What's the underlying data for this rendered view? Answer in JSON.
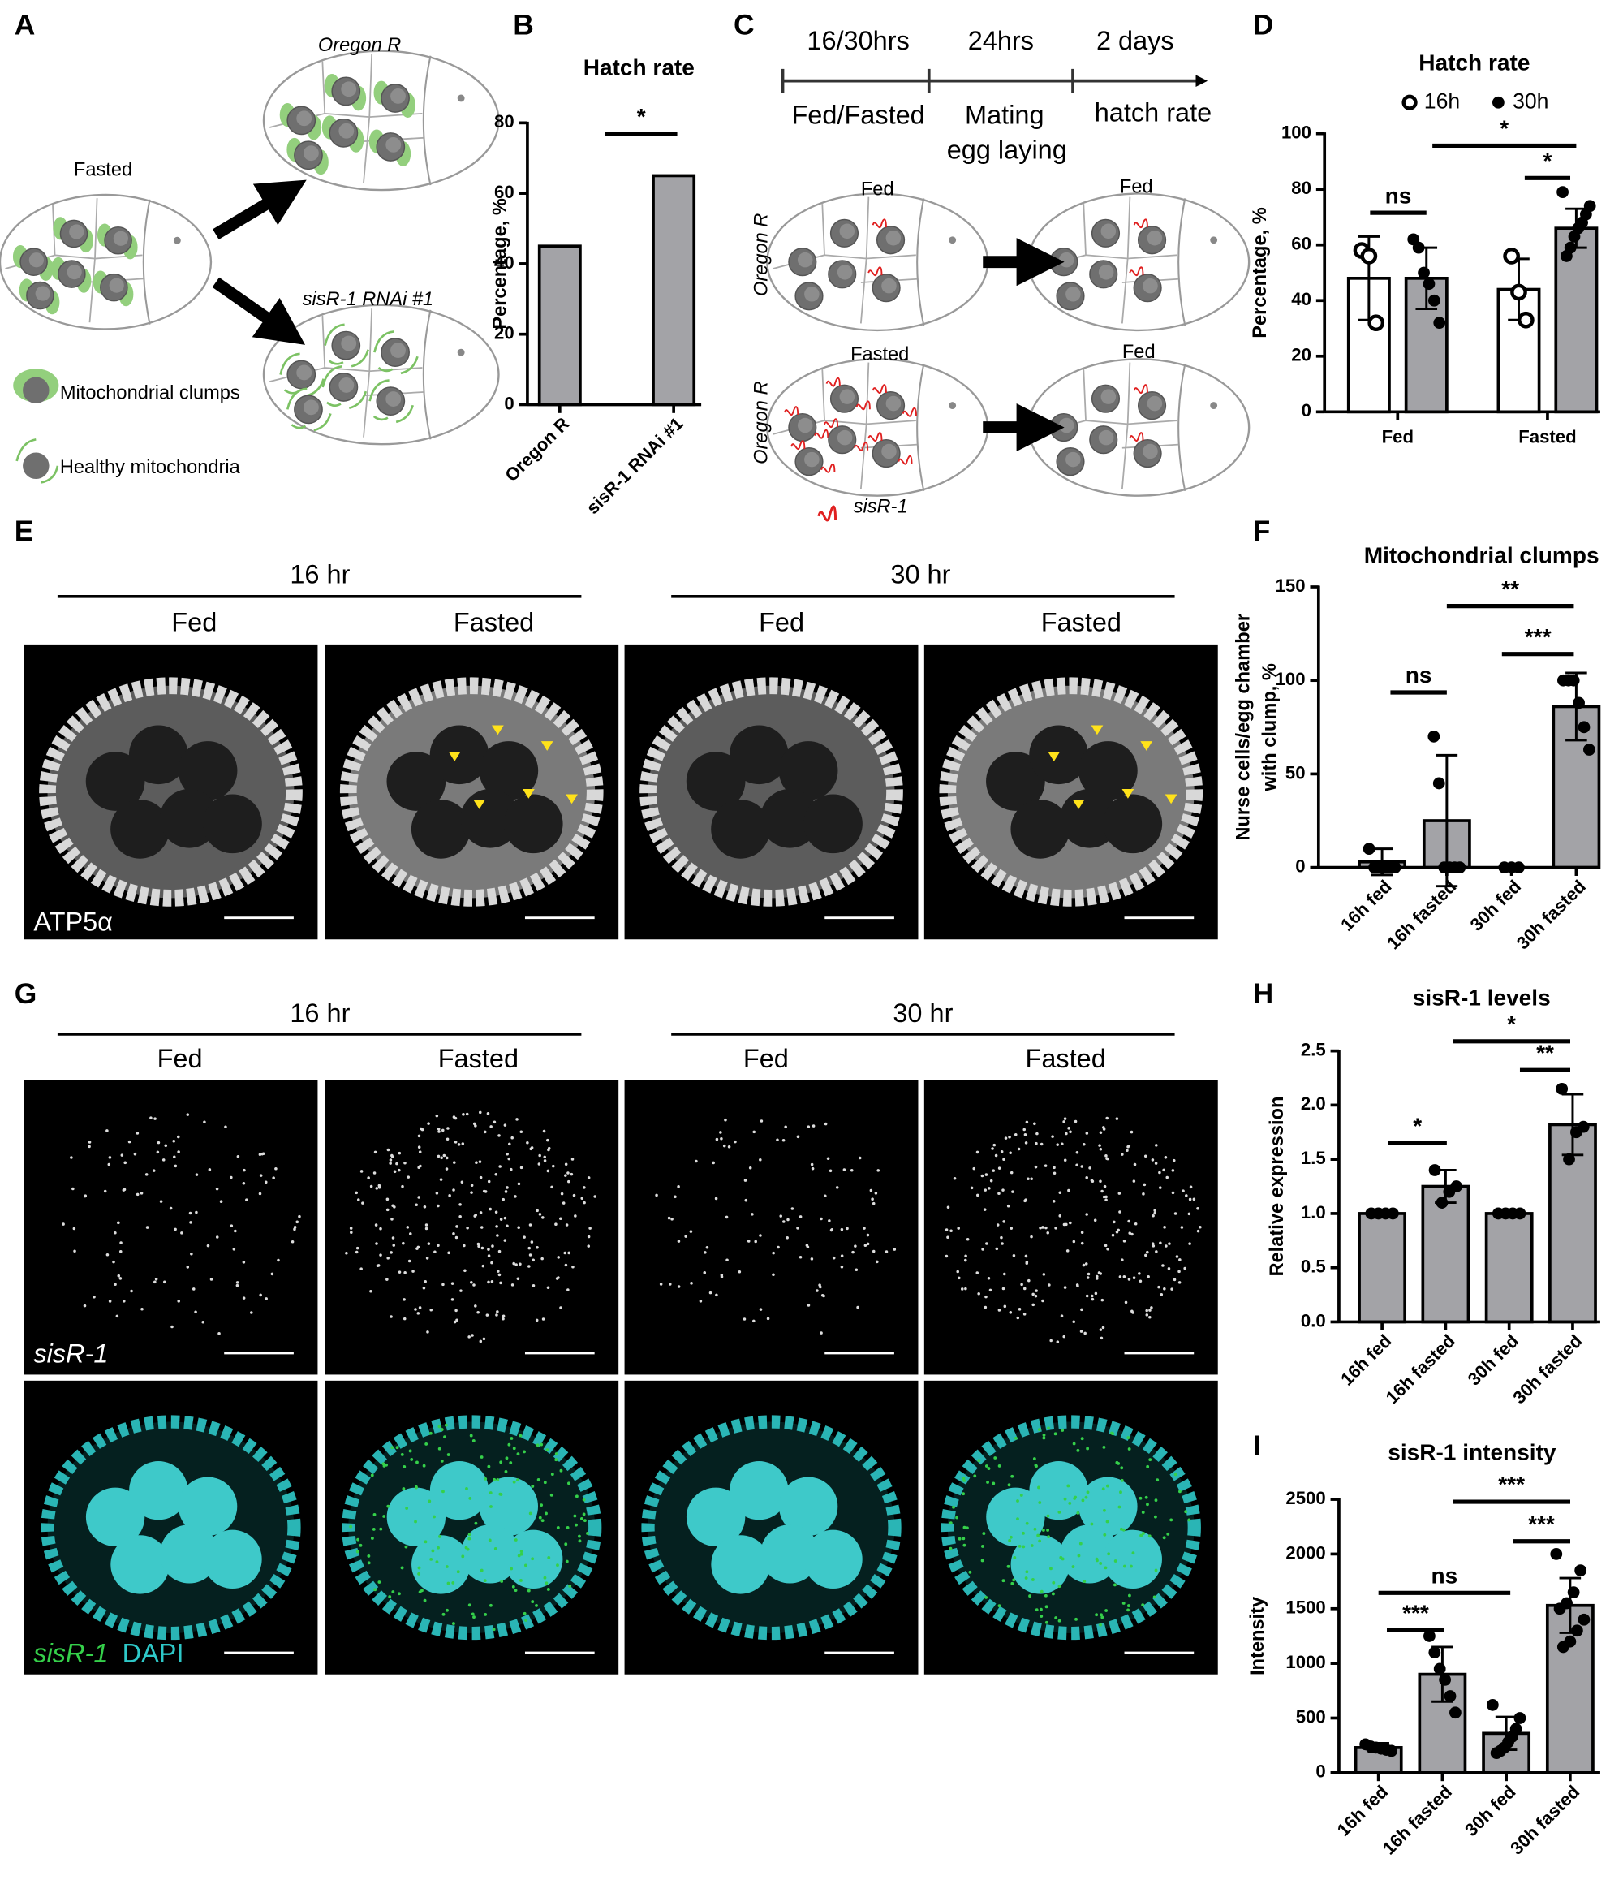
{
  "panel_labels": [
    "A",
    "B",
    "C",
    "D",
    "E",
    "F",
    "G",
    "H",
    "I"
  ],
  "panel_a": {
    "fasted": "Fasted",
    "top": "Oregon R",
    "bottom": "sisR-1 RNAi #1",
    "legend": [
      "Mitochondrial clumps",
      "Healthy mitochondria"
    ]
  },
  "panel_c": {
    "times": [
      "16/30hrs",
      "24hrs",
      "2 days"
    ],
    "steps": [
      "Fed/Fasted",
      "Mating",
      "egg laying",
      "hatch rate"
    ],
    "rows": [
      "Oregon R",
      "Oregon R"
    ],
    "states": [
      "Fed",
      "Fed",
      "Fasted",
      "Fed"
    ],
    "legend": "sisR-1"
  },
  "panel_e": {
    "times": [
      "16 hr",
      "30 hr"
    ],
    "conditions": [
      "Fed",
      "Fasted",
      "Fed",
      "Fasted"
    ],
    "stain": "ATP5α"
  },
  "panel_g": {
    "times": [
      "16 hr",
      "30 hr"
    ],
    "conditions": [
      "Fed",
      "Fasted",
      "Fed",
      "Fasted"
    ],
    "stain": "sisR-1",
    "merge": [
      "sisR-1",
      "DAPI"
    ]
  },
  "chart_data": [
    {
      "type": "bar",
      "title": "Hatch rate",
      "ylabel": "Percentage, %",
      "categories": [
        "Oregon R",
        "sisR-1 RNAi #1"
      ],
      "series": [
        {
          "color": "#a3a3a7",
          "values": [
            45,
            65
          ]
        }
      ],
      "ylim": [
        0,
        80
      ],
      "yticks": [
        0,
        20,
        40,
        60,
        80
      ],
      "annotations": [
        "*"
      ]
    },
    {
      "type": "bar",
      "title": "Hatch rate",
      "ylabel": "Percentage, %",
      "categories": [
        "Fed",
        "Fasted"
      ],
      "legend": "top",
      "series": [
        {
          "name": "16h",
          "color": "#ffffff",
          "marker": "open",
          "values": [
            48,
            44
          ],
          "errors": [
            15,
            11
          ],
          "points": [
            [
              58,
              56,
              32
            ],
            [
              56,
              43,
              33
            ]
          ]
        },
        {
          "name": "30h",
          "color": "#a3a3a7",
          "marker": "filled",
          "values": [
            48,
            66
          ],
          "errors": [
            11,
            7
          ],
          "points": [
            [
              62,
              59,
              50,
              46,
              40,
              32
            ],
            [
              79,
              74,
              71,
              68,
              66,
              63,
              59,
              56
            ]
          ]
        }
      ],
      "ylim": [
        0,
        100
      ],
      "yticks": [
        0,
        20,
        40,
        60,
        80,
        100
      ],
      "annotations": [
        "ns",
        "*",
        "*"
      ]
    },
    {
      "type": "bar",
      "title": "Mitochondrial clumps",
      "ylabel": [
        "Nurse cells/egg chamber",
        "with clump, %"
      ],
      "categories": [
        "16h fed",
        "16h fasted",
        "30h fed",
        "30h fasted"
      ],
      "series": [
        {
          "color": "#a3a3a7",
          "marker": "filled",
          "values": [
            3,
            25,
            0,
            86
          ],
          "errors": [
            7,
            35,
            0,
            18
          ],
          "points": [
            [
              10,
              0,
              0,
              0,
              0,
              0
            ],
            [
              70,
              45,
              0,
              0,
              0,
              0
            ],
            [
              0,
              0,
              0
            ],
            [
              100,
              100,
              100,
              88,
              75,
              63
            ]
          ]
        }
      ],
      "ylim": [
        0,
        150
      ],
      "yticks": [
        0,
        50,
        100,
        150
      ],
      "annotations": [
        "ns",
        "***",
        "**"
      ]
    },
    {
      "type": "bar",
      "title": "sisR-1 levels",
      "ylabel": "Relative expression",
      "categories": [
        "16h fed",
        "16h fasted",
        "30h fed",
        "30h fasted"
      ],
      "series": [
        {
          "color": "#a3a3a7",
          "marker": "filled",
          "values": [
            1.0,
            1.25,
            1.0,
            1.82
          ],
          "errors": [
            0,
            0.15,
            0,
            0.28
          ],
          "points": [
            [
              1,
              1,
              1,
              1
            ],
            [
              1.4,
              1.25,
              1.2,
              1.1
            ],
            [
              1,
              1,
              1,
              1
            ],
            [
              2.15,
              1.8,
              1.75,
              1.5
            ]
          ]
        }
      ],
      "ylim": [
        0,
        2.5
      ],
      "yticks": [
        {
          "value": 0,
          "label": "0.0"
        },
        0.5,
        {
          "value": 1,
          "label": "1.0"
        },
        1.5,
        {
          "value": 2,
          "label": "2.0"
        },
        2.5
      ],
      "annotations": [
        "*",
        "**",
        "*"
      ]
    },
    {
      "type": "bar",
      "title": "sisR-1 intensity",
      "ylabel": "Intensity",
      "categories": [
        "16h fed",
        "16h fasted",
        "30h fed",
        "30h fasted"
      ],
      "series": [
        {
          "color": "#a3a3a7",
          "marker": "filled",
          "values": [
            230,
            900,
            360,
            1530
          ],
          "errors": [
            40,
            250,
            150,
            250
          ],
          "points": [
            [
              260,
              240,
              230,
              220,
              210,
              200
            ],
            [
              1250,
              1100,
              950,
              850,
              700,
              550
            ],
            [
              620,
              500,
              400,
              330,
              280,
              230,
              200,
              180
            ],
            [
              2000,
              1850,
              1650,
              1550,
              1500,
              1400,
              1300,
              1200,
              1150
            ]
          ]
        }
      ],
      "ylim": [
        0,
        2500
      ],
      "yticks": [
        0,
        500,
        1000,
        1500,
        2000,
        2500
      ],
      "annotations": [
        "***",
        "ns",
        "***",
        "***"
      ]
    }
  ]
}
